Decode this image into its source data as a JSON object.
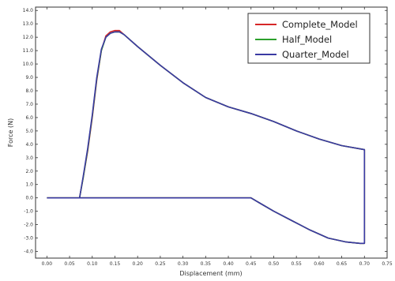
{
  "chart_data": {
    "type": "line",
    "title": "",
    "xlabel": "Displacement (mm)",
    "ylabel": "Force (N)",
    "xlim": [
      -0.025,
      0.75
    ],
    "ylim": [
      -4.5,
      14.25
    ],
    "grid": false,
    "legend_position": "top-right",
    "x_ticks": [
      0.0,
      0.05,
      0.1,
      0.15,
      0.2,
      0.25,
      0.3,
      0.35,
      0.4,
      0.45,
      0.5,
      0.55,
      0.6,
      0.65,
      0.7,
      0.75
    ],
    "x_tick_labels": [
      "0.00",
      "0.05",
      "0.10",
      "0.15",
      "0.20",
      "0.25",
      "0.30",
      "0.35",
      "0.40",
      "0.45",
      "0.50",
      "0.55",
      "0.60",
      "0.65",
      "0.70",
      "0.75"
    ],
    "y_ticks": [
      -4.0,
      -3.0,
      -2.0,
      -1.0,
      0.0,
      1.0,
      2.0,
      3.0,
      4.0,
      5.0,
      6.0,
      7.0,
      8.0,
      9.0,
      10.0,
      11.0,
      12.0,
      13.0,
      14.0
    ],
    "y_tick_labels": [
      "-4.0",
      "-3.0",
      "-2.0",
      "-1.0",
      "0.0",
      "1.0",
      "2.0",
      "3.0",
      "4.0",
      "5.0",
      "6.0",
      "7.0",
      "8.0",
      "9.0",
      "10.0",
      "11.0",
      "12.0",
      "13.0",
      "14.0"
    ],
    "series": [
      {
        "name": "Complete_Model",
        "color": "#d62728",
        "x": [
          0.0,
          0.072,
          0.08,
          0.09,
          0.1,
          0.11,
          0.12,
          0.13,
          0.14,
          0.15,
          0.16,
          0.17,
          0.2,
          0.25,
          0.3,
          0.35,
          0.4,
          0.45,
          0.5,
          0.55,
          0.6,
          0.65,
          0.7,
          0.7,
          0.69,
          0.66,
          0.62,
          0.58,
          0.54,
          0.5,
          0.47,
          0.45,
          0.3,
          0.1,
          0.0
        ],
        "y": [
          0.0,
          0.0,
          1.5,
          3.5,
          6.0,
          8.8,
          11.0,
          12.1,
          12.4,
          12.5,
          12.5,
          12.2,
          11.3,
          9.9,
          8.6,
          7.5,
          6.8,
          6.3,
          5.7,
          5.0,
          4.4,
          3.9,
          3.6,
          -3.4,
          -3.4,
          -3.3,
          -3.0,
          -2.4,
          -1.7,
          -1.0,
          -0.4,
          0.0,
          0.0,
          0.0,
          0.0
        ]
      },
      {
        "name": "Half_Model",
        "color": "#2ca02c",
        "x": [
          0.0,
          0.072,
          0.08,
          0.09,
          0.1,
          0.11,
          0.12,
          0.13,
          0.14,
          0.15,
          0.16,
          0.17,
          0.2,
          0.25,
          0.3,
          0.35,
          0.4,
          0.45,
          0.5,
          0.55,
          0.6,
          0.65,
          0.7,
          0.7,
          0.69,
          0.66,
          0.62,
          0.58,
          0.54,
          0.5,
          0.47,
          0.45,
          0.3,
          0.1,
          0.0
        ],
        "y": [
          0.0,
          0.0,
          1.5,
          3.6,
          6.1,
          8.9,
          11.0,
          12.0,
          12.3,
          12.4,
          12.4,
          12.2,
          11.3,
          9.9,
          8.6,
          7.5,
          6.8,
          6.3,
          5.7,
          5.0,
          4.4,
          3.9,
          3.6,
          -3.4,
          -3.4,
          -3.3,
          -3.0,
          -2.4,
          -1.7,
          -1.0,
          -0.4,
          0.0,
          0.0,
          0.0,
          0.0
        ]
      },
      {
        "name": "Quarter_Model",
        "color": "#3a3aa3",
        "x": [
          0.0,
          0.072,
          0.08,
          0.09,
          0.1,
          0.11,
          0.12,
          0.13,
          0.14,
          0.15,
          0.16,
          0.17,
          0.2,
          0.25,
          0.3,
          0.35,
          0.4,
          0.45,
          0.5,
          0.55,
          0.6,
          0.65,
          0.7,
          0.7,
          0.69,
          0.66,
          0.62,
          0.58,
          0.54,
          0.5,
          0.47,
          0.45,
          0.3,
          0.1,
          0.0
        ],
        "y": [
          0.0,
          0.0,
          1.6,
          3.7,
          6.2,
          9.0,
          11.1,
          12.0,
          12.3,
          12.4,
          12.4,
          12.2,
          11.3,
          9.9,
          8.6,
          7.5,
          6.8,
          6.3,
          5.7,
          5.0,
          4.4,
          3.9,
          3.6,
          -3.4,
          -3.4,
          -3.3,
          -3.0,
          -2.4,
          -1.7,
          -1.0,
          -0.4,
          0.0,
          0.0,
          0.0,
          0.0
        ]
      }
    ]
  }
}
